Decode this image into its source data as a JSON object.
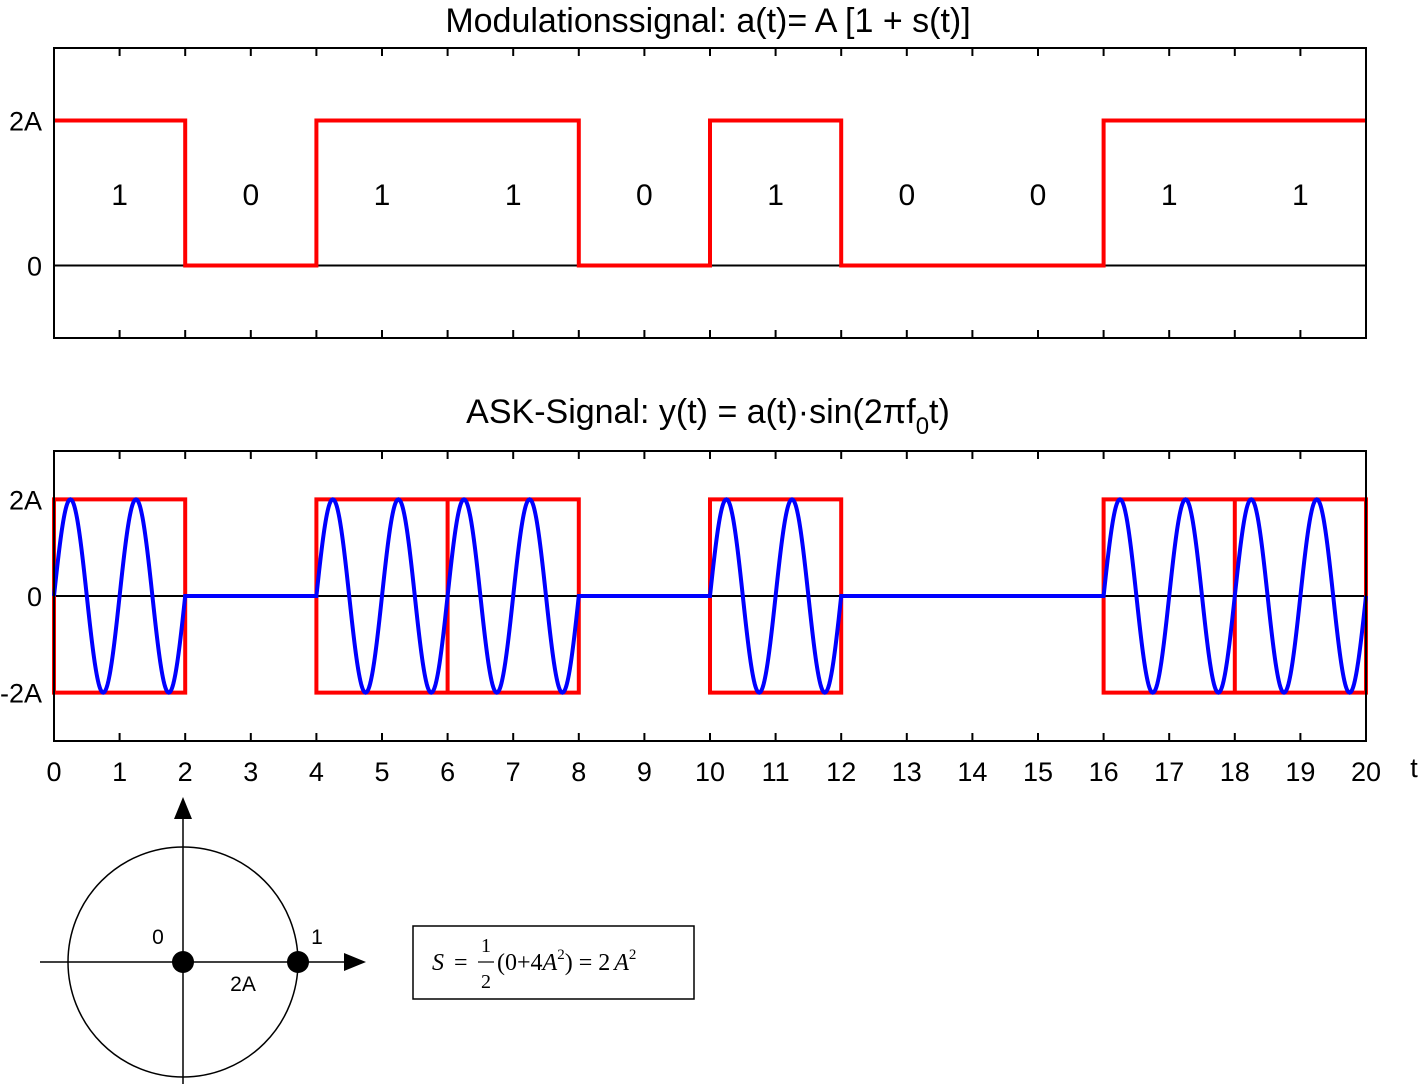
{
  "chart_data": [
    {
      "type": "line",
      "title": "Modulationssignal:  a(t)= A [1 + s(t)]",
      "xlim": [
        0,
        20
      ],
      "ylim": [
        -1,
        3
      ],
      "ytick_labels": [
        {
          "value": 2,
          "label": "2A"
        },
        {
          "value": 0,
          "label": "0"
        }
      ],
      "bits": [
        "1",
        "0",
        "1",
        "1",
        "0",
        "1",
        "0",
        "0",
        "1",
        "1"
      ],
      "bit_period": 2,
      "amplitude_high": 2,
      "amplitude_low": 0,
      "series": [
        {
          "color": "#ff0000"
        }
      ]
    },
    {
      "type": "line",
      "title": "ASK-Signal:  y(t) = a(t)·sin(2πf₀t)",
      "title_parts": {
        "main": "ASK-Signal:  y(t) = a(t)·sin(2πf",
        "sub": "0",
        "tail": "t)"
      },
      "xlabel": "t",
      "xlim": [
        0,
        20
      ],
      "ylim": [
        -3,
        3
      ],
      "xticks": [
        0,
        1,
        2,
        3,
        4,
        5,
        6,
        7,
        8,
        9,
        10,
        11,
        12,
        13,
        14,
        15,
        16,
        17,
        18,
        19,
        20
      ],
      "ytick_labels": [
        {
          "value": 2,
          "label": "2A"
        },
        {
          "value": 0,
          "label": "0"
        },
        {
          "value": -2,
          "label": "-2A"
        }
      ],
      "carrier_frequency": 1,
      "series": [
        {
          "color": "#ff0000"
        },
        {
          "color": "#0000ff"
        }
      ]
    }
  ],
  "constellation": {
    "points": [
      {
        "label": "0",
        "value": 0
      },
      {
        "label": "1",
        "value": 2
      }
    ],
    "distance_label": "2A"
  },
  "formula": {
    "lhs": "S",
    "eq": "=",
    "frac_num": "1",
    "frac_den": "2",
    "paren": "(0+4",
    "a": "A",
    "sup": "2",
    "close": ")",
    "eq2": "=",
    "rhs": "2",
    "rhs_a": "A",
    "rhs_sup": "2"
  }
}
